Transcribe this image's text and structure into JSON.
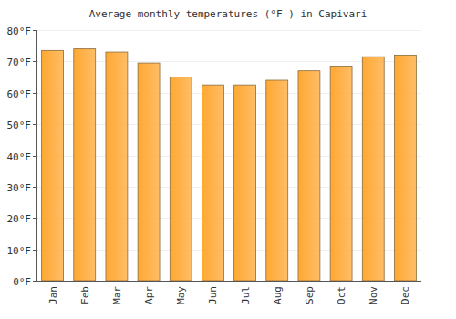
{
  "chart_data": {
    "type": "bar",
    "title": "Average monthly temperatures (°F ) in Capivari",
    "categories": [
      "Jan",
      "Feb",
      "Mar",
      "Apr",
      "May",
      "Jun",
      "Jul",
      "Aug",
      "Sep",
      "Oct",
      "Nov",
      "Dec"
    ],
    "values": [
      73.5,
      74,
      73,
      69.5,
      65,
      62.5,
      62.5,
      64,
      67,
      68.5,
      71.5,
      72
    ],
    "color": "#ffa833",
    "ylim": [
      0,
      80
    ],
    "yticks": [
      {
        "value": 0,
        "label": "0°F"
      },
      {
        "value": 10,
        "label": "10°F"
      },
      {
        "value": 20,
        "label": "20°F"
      },
      {
        "value": 30,
        "label": "30°F"
      },
      {
        "value": 40,
        "label": "40°F"
      },
      {
        "value": 50,
        "label": "50°F"
      },
      {
        "value": 60,
        "label": "60°F"
      },
      {
        "value": 70,
        "label": "70°F"
      },
      {
        "value": 80,
        "label": "80°F"
      }
    ],
    "grid": true
  }
}
